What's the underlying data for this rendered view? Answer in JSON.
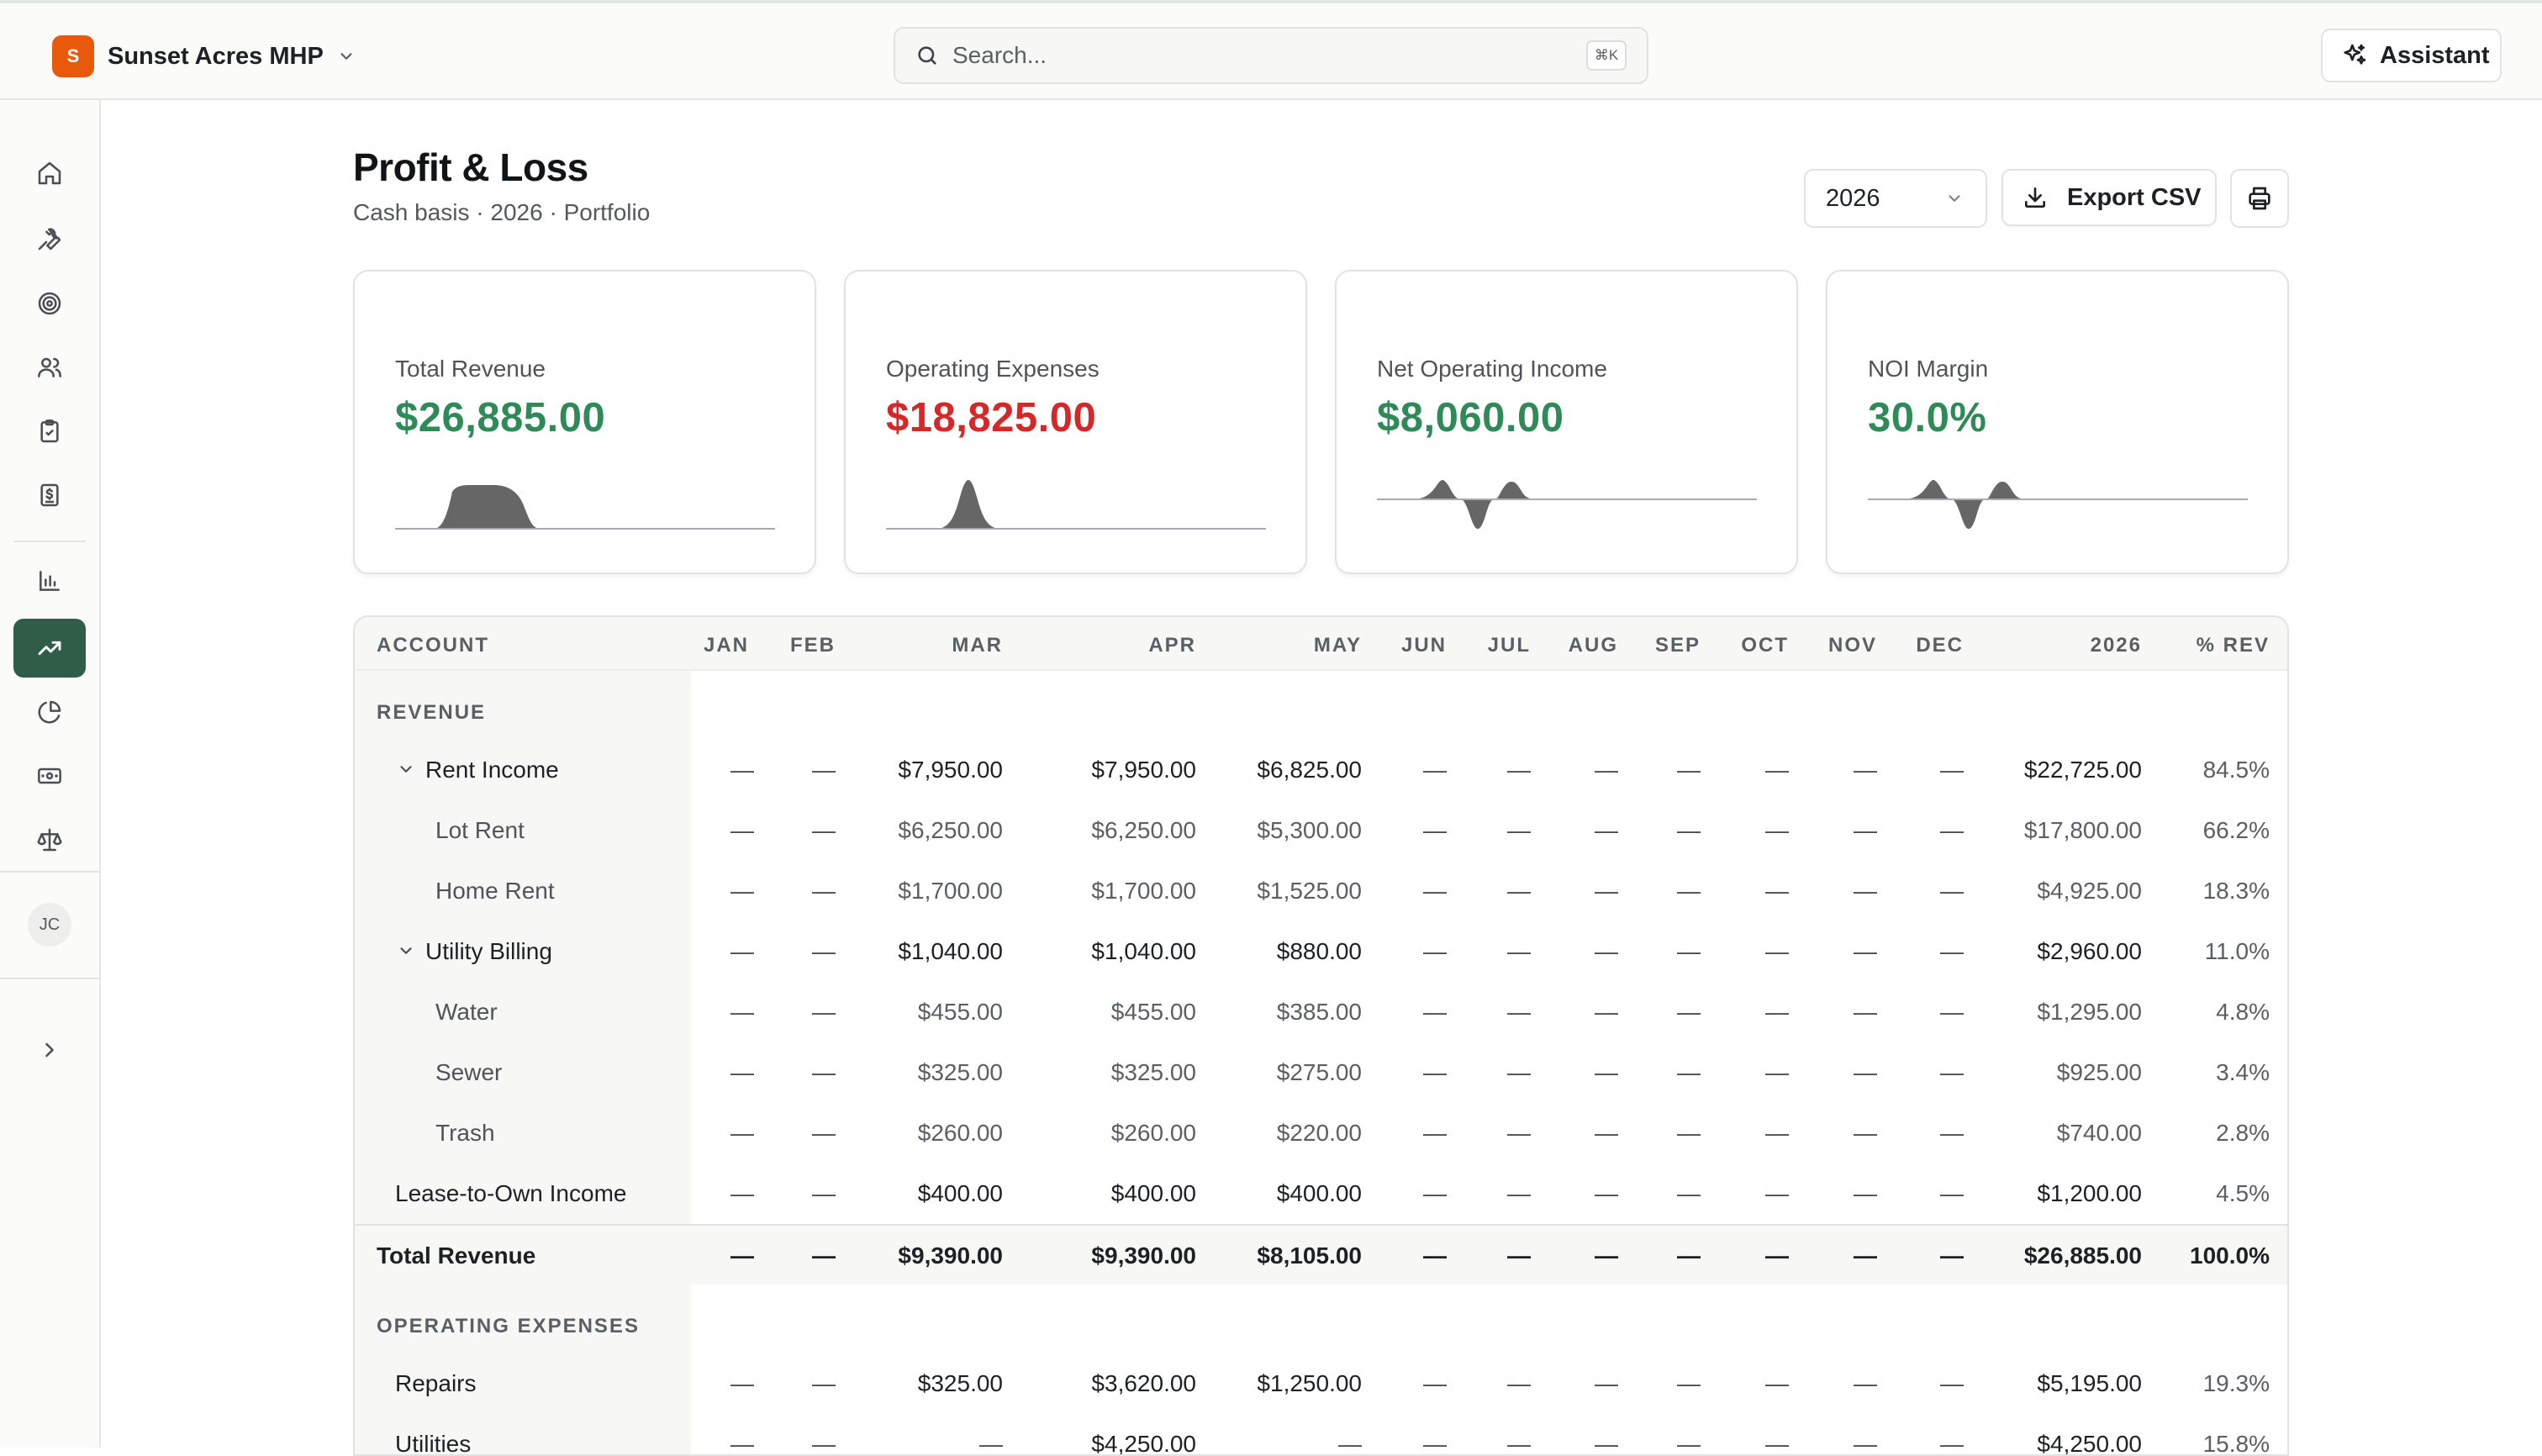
{
  "header": {
    "org_initial": "S",
    "org_name": "Sunset Acres MHP",
    "search_placeholder": "Search...",
    "search_shortcut": "⌘K",
    "assistant_label": "Assistant"
  },
  "sidebar": {
    "items": [
      {
        "icon": "home-icon",
        "name": "home"
      },
      {
        "icon": "wrench-icon",
        "name": "maintenance"
      },
      {
        "icon": "target-icon",
        "name": "goals"
      },
      {
        "icon": "users-icon",
        "name": "tenants"
      },
      {
        "icon": "clipboard-icon",
        "name": "tasks"
      },
      {
        "icon": "receipt-icon",
        "name": "billing"
      },
      {
        "icon": "bar-chart-icon",
        "name": "reports"
      },
      {
        "icon": "trending-up-icon",
        "name": "profit-loss",
        "active": true
      },
      {
        "icon": "pie-chart-icon",
        "name": "analytics"
      },
      {
        "icon": "banknote-icon",
        "name": "payments"
      },
      {
        "icon": "scale-icon",
        "name": "legal"
      }
    ],
    "avatar_initials": "JC",
    "expand_icon": "chevron-right-icon"
  },
  "page": {
    "title": "Profit & Loss",
    "subtitle": "Cash basis · 2026 · Portfolio",
    "year_selected": "2026",
    "export_label": "Export CSV"
  },
  "kpis": [
    {
      "label": "Total Revenue",
      "value": "$26,885.00",
      "tone": "positive",
      "color": "#2e8b57"
    },
    {
      "label": "Operating Expenses",
      "value": "$18,825.00",
      "tone": "negative",
      "color": "#d62828"
    },
    {
      "label": "Net Operating Income",
      "value": "$8,060.00",
      "tone": "positive",
      "color": "#2e8b57"
    },
    {
      "label": "NOI Margin",
      "value": "30.0%",
      "tone": "positive",
      "color": "#2e8b57"
    }
  ],
  "table": {
    "columns": [
      "ACCOUNT",
      "JAN",
      "FEB",
      "MAR",
      "APR",
      "MAY",
      "JUN",
      "JUL",
      "AUG",
      "SEP",
      "OCT",
      "NOV",
      "DEC",
      "2026",
      "% REV"
    ],
    "revenue_section": "REVENUE",
    "revenue_rows": [
      {
        "account": "Rent Income",
        "level": 0,
        "group": true,
        "cells": [
          "—",
          "—",
          "$7,950.00",
          "$7,950.00",
          "$6,825.00",
          "—",
          "—",
          "—",
          "—",
          "—",
          "—",
          "—",
          "$22,725.00",
          "84.5%"
        ]
      },
      {
        "account": "Lot Rent",
        "level": 1,
        "cells": [
          "—",
          "—",
          "$6,250.00",
          "$6,250.00",
          "$5,300.00",
          "—",
          "—",
          "—",
          "—",
          "—",
          "—",
          "—",
          "$17,800.00",
          "66.2%"
        ]
      },
      {
        "account": "Home Rent",
        "level": 1,
        "cells": [
          "—",
          "—",
          "$1,700.00",
          "$1,700.00",
          "$1,525.00",
          "—",
          "—",
          "—",
          "—",
          "—",
          "—",
          "—",
          "$4,925.00",
          "18.3%"
        ]
      },
      {
        "account": "Utility Billing",
        "level": 0,
        "group": true,
        "cells": [
          "—",
          "—",
          "$1,040.00",
          "$1,040.00",
          "$880.00",
          "—",
          "—",
          "—",
          "—",
          "—",
          "—",
          "—",
          "$2,960.00",
          "11.0%"
        ]
      },
      {
        "account": "Water",
        "level": 1,
        "cells": [
          "—",
          "—",
          "$455.00",
          "$455.00",
          "$385.00",
          "—",
          "—",
          "—",
          "—",
          "—",
          "—",
          "—",
          "$1,295.00",
          "4.8%"
        ]
      },
      {
        "account": "Sewer",
        "level": 1,
        "cells": [
          "—",
          "—",
          "$325.00",
          "$325.00",
          "$275.00",
          "—",
          "—",
          "—",
          "—",
          "—",
          "—",
          "—",
          "$925.00",
          "3.4%"
        ]
      },
      {
        "account": "Trash",
        "level": 1,
        "cells": [
          "—",
          "—",
          "$260.00",
          "$260.00",
          "$220.00",
          "—",
          "—",
          "—",
          "—",
          "—",
          "—",
          "—",
          "$740.00",
          "2.8%"
        ]
      },
      {
        "account": "Lease-to-Own Income",
        "level": 0,
        "cells": [
          "—",
          "—",
          "$400.00",
          "$400.00",
          "$400.00",
          "—",
          "—",
          "—",
          "—",
          "—",
          "—",
          "—",
          "$1,200.00",
          "4.5%"
        ]
      }
    ],
    "revenue_total": {
      "account": "Total Revenue",
      "cells": [
        "—",
        "—",
        "$9,390.00",
        "$9,390.00",
        "$8,105.00",
        "—",
        "—",
        "—",
        "—",
        "—",
        "—",
        "—",
        "$26,885.00",
        "100.0%"
      ]
    },
    "expense_section": "OPERATING EXPENSES",
    "expense_rows": [
      {
        "account": "Repairs",
        "level": 0,
        "cells": [
          "—",
          "—",
          "$325.00",
          "$3,620.00",
          "$1,250.00",
          "—",
          "—",
          "—",
          "—",
          "—",
          "—",
          "—",
          "$5,195.00",
          "19.3%"
        ]
      },
      {
        "account": "Utilities",
        "level": 0,
        "cells": [
          "—",
          "—",
          "—",
          "$4,250.00",
          "—",
          "—",
          "—",
          "—",
          "—",
          "—",
          "—",
          "—",
          "$4,250.00",
          "15.8%"
        ]
      }
    ]
  }
}
